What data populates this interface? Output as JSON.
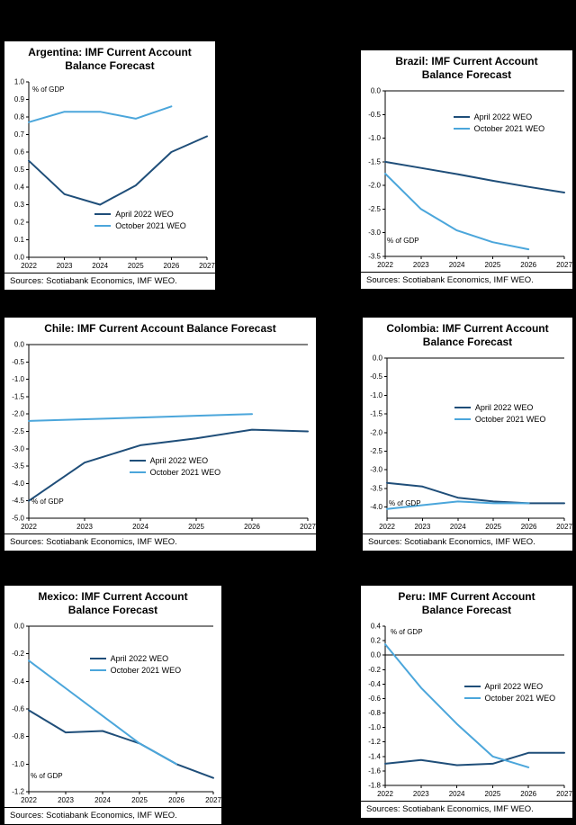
{
  "colors": {
    "april_2022": "#1F4E79",
    "october_2021": "#4BA6DB",
    "page_bg": "#000000",
    "panel_bg": "#FFFFFF"
  },
  "sources_label": "Sources: Scotiabank Economics, IMF WEO.",
  "chart_data": [
    {
      "country": "Argentina",
      "type": "line",
      "title": "Argentina: IMF Current Account Balance Forecast",
      "ylabel": "% of GDP",
      "x": [
        2022,
        2023,
        2024,
        2025,
        2026,
        2027
      ],
      "ylim": [
        0.0,
        1.0
      ],
      "yticks": [
        1.0,
        0.9,
        0.8,
        0.7,
        0.6,
        0.5,
        0.4,
        0.3,
        0.2,
        0.1,
        0.0
      ],
      "ydecimals": 1,
      "series": [
        {
          "name": "April 2022 WEO",
          "color_key": "april_2022",
          "values": [
            0.55,
            0.36,
            0.3,
            0.41,
            0.6,
            0.69
          ]
        },
        {
          "name": "October 2021 WEO",
          "color_key": "october_2021",
          "values": [
            0.77,
            0.83,
            0.83,
            0.79,
            0.86,
            null
          ]
        }
      ],
      "legend_pos": [
        0.37,
        0.73
      ],
      "gdp_label_pos": [
        0.02,
        0.02
      ]
    },
    {
      "country": "Brazil",
      "type": "line",
      "title": "Brazil: IMF Current Account Balance Forecast",
      "ylabel": "% of GDP",
      "x": [
        2022,
        2023,
        2024,
        2025,
        2026,
        2027
      ],
      "ylim": [
        -3.5,
        0.0
      ],
      "yticks": [
        0.0,
        -0.5,
        -1.0,
        -1.5,
        -2.0,
        -2.5,
        -3.0,
        -3.5
      ],
      "ydecimals": 1,
      "series": [
        {
          "name": "April 2022 WEO",
          "color_key": "april_2022",
          "values": [
            -1.5,
            -1.63,
            -1.76,
            -1.9,
            -2.03,
            -2.15
          ]
        },
        {
          "name": "October 2021 WEO",
          "color_key": "october_2021",
          "values": [
            -1.75,
            -2.5,
            -2.95,
            -3.2,
            -3.35,
            null
          ]
        }
      ],
      "legend_pos": [
        0.38,
        0.13
      ],
      "gdp_label_pos": [
        0.01,
        0.88
      ]
    },
    {
      "country": "Chile",
      "type": "line",
      "title": "Chile: IMF Current Account Balance Forecast",
      "ylabel": "% of GDP",
      "x": [
        2022,
        2023,
        2024,
        2025,
        2026,
        2027
      ],
      "ylim": [
        -5.0,
        0.0
      ],
      "yticks": [
        0.0,
        -0.5,
        -1.0,
        -1.5,
        -2.0,
        -2.5,
        -3.0,
        -3.5,
        -4.0,
        -4.5,
        -5.0
      ],
      "ydecimals": 1,
      "series": [
        {
          "name": "April 2022 WEO",
          "color_key": "april_2022",
          "values": [
            -4.5,
            -3.4,
            -2.9,
            -2.7,
            -2.45,
            -2.5
          ]
        },
        {
          "name": "October 2021 WEO",
          "color_key": "october_2021",
          "values": [
            -2.2,
            -2.15,
            -2.1,
            -2.05,
            -2.0,
            null
          ]
        }
      ],
      "legend_pos": [
        0.36,
        0.64
      ],
      "gdp_label_pos": [
        0.01,
        0.88
      ]
    },
    {
      "country": "Colombia",
      "type": "line",
      "title": "Colombia: IMF Current Account Balance Forecast",
      "ylabel": "% of GDP",
      "x": [
        2022,
        2023,
        2024,
        2025,
        2026,
        2027
      ],
      "ylim": [
        -4.3,
        0.0
      ],
      "yticks": [
        0.0,
        -0.5,
        -1.0,
        -1.5,
        -2.0,
        -2.5,
        -3.0,
        -3.5,
        -4.0
      ],
      "ydecimals": 1,
      "series": [
        {
          "name": "April 2022 WEO",
          "color_key": "april_2022",
          "values": [
            -3.35,
            -3.45,
            -3.75,
            -3.85,
            -3.9,
            -3.9
          ]
        },
        {
          "name": "October 2021 WEO",
          "color_key": "october_2021",
          "values": [
            -4.05,
            -3.95,
            -3.85,
            -3.9,
            -3.9,
            null
          ]
        }
      ],
      "legend_pos": [
        0.38,
        0.28
      ],
      "gdp_label_pos": [
        0.01,
        0.88
      ]
    },
    {
      "country": "Mexico",
      "type": "line",
      "title": "Mexico: IMF Current Account Balance Forecast",
      "ylabel": "% of GDP",
      "x": [
        2022,
        2023,
        2024,
        2025,
        2026,
        2027
      ],
      "ylim": [
        -1.2,
        0.0
      ],
      "yticks": [
        0.0,
        -0.2,
        -0.4,
        -0.6,
        -0.8,
        -1.0,
        -1.2
      ],
      "ydecimals": 1,
      "series": [
        {
          "name": "April 2022 WEO",
          "color_key": "april_2022",
          "values": [
            -0.61,
            -0.77,
            -0.76,
            -0.85,
            -1.0,
            -1.1
          ]
        },
        {
          "name": "October 2021 WEO",
          "color_key": "october_2021",
          "values": [
            -0.25,
            -0.45,
            -0.65,
            -0.85,
            -1.0,
            null
          ]
        }
      ],
      "legend_pos": [
        0.33,
        0.17
      ],
      "gdp_label_pos": [
        0.01,
        0.88
      ]
    },
    {
      "country": "Peru",
      "type": "line",
      "title": "Peru: IMF Current Account Balance Forecast",
      "ylabel": "% of GDP",
      "x": [
        2022,
        2023,
        2024,
        2025,
        2026,
        2027
      ],
      "ylim": [
        -1.8,
        0.4
      ],
      "yticks": [
        0.4,
        0.2,
        0.0,
        -0.2,
        -0.4,
        -0.6,
        -0.8,
        -1.0,
        -1.2,
        -1.4,
        -1.6,
        -1.8
      ],
      "ydecimals": 1,
      "series": [
        {
          "name": "April 2022 WEO",
          "color_key": "april_2022",
          "values": [
            -1.5,
            -1.45,
            -1.52,
            -1.5,
            -1.35,
            -1.35
          ]
        },
        {
          "name": "October 2021 WEO",
          "color_key": "october_2021",
          "values": [
            0.15,
            -0.45,
            -0.95,
            -1.4,
            -1.55,
            null
          ]
        }
      ],
      "legend_pos": [
        0.44,
        0.35
      ],
      "gdp_label_pos": [
        0.03,
        0.01
      ]
    }
  ]
}
